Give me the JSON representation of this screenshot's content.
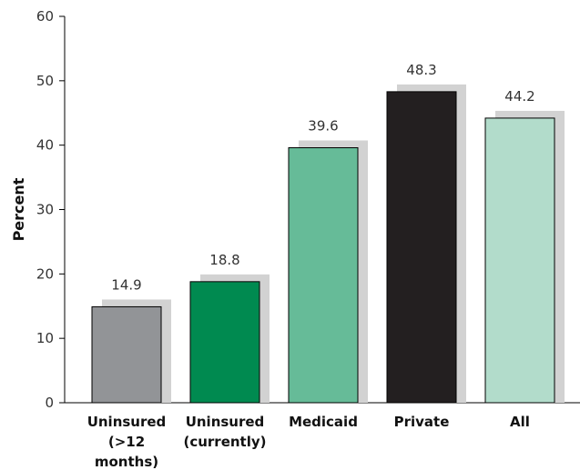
{
  "chart_data": {
    "type": "bar",
    "title": "",
    "xlabel": "",
    "ylabel": "Percent",
    "ylim": [
      0,
      60
    ],
    "yticks": [
      0,
      10,
      20,
      30,
      40,
      50,
      60
    ],
    "grid": false,
    "legend": "none",
    "shadow_color": "#d2d2d2",
    "categories": [
      [
        "Uninsured",
        "(>12",
        "months)"
      ],
      [
        "Uninsured",
        "(currently)"
      ],
      [
        "Medicaid"
      ],
      [
        "Private"
      ],
      [
        "All"
      ]
    ],
    "values": [
      14.9,
      18.8,
      39.6,
      48.3,
      44.2
    ],
    "value_labels": [
      "14.9",
      "18.8",
      "39.6",
      "48.3",
      "44.2"
    ],
    "colors": [
      "#929497",
      "#008a50",
      "#66bb98",
      "#231f20",
      "#b2dccb"
    ]
  }
}
